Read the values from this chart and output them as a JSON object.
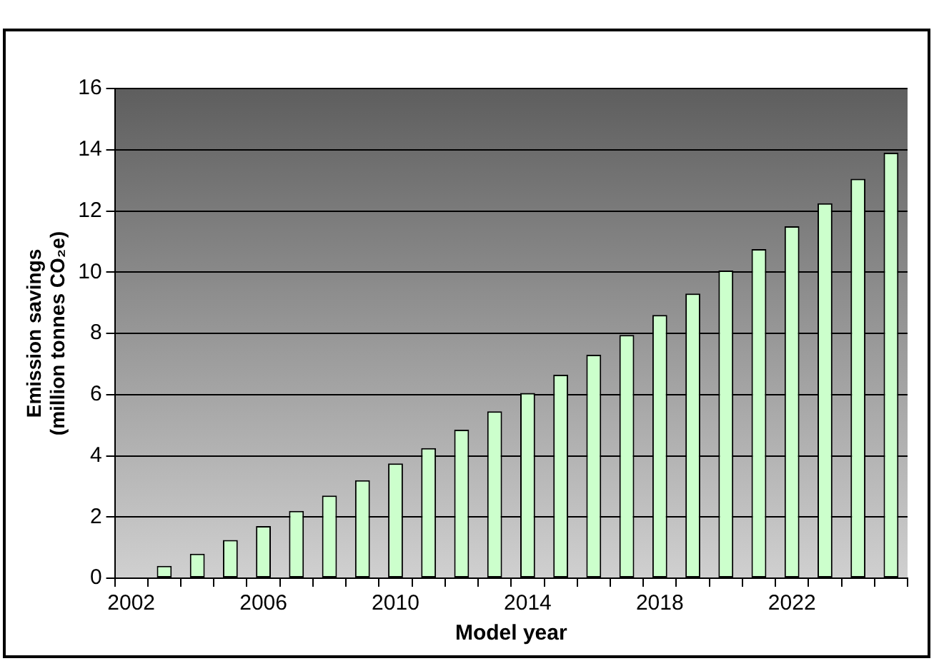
{
  "chart_data": {
    "type": "bar",
    "xlabel": "Model year",
    "ylabel": "Emission savings\n(million tonnes CO₂e)",
    "categories": [
      "2002",
      null,
      null,
      null,
      "2006",
      null,
      null,
      null,
      "2010",
      null,
      null,
      null,
      "2014",
      null,
      null,
      null,
      "2018",
      null,
      null,
      null,
      "2022",
      null,
      null,
      null
    ],
    "values": [
      null,
      0.4,
      0.8,
      1.25,
      1.7,
      2.2,
      2.7,
      3.2,
      3.75,
      4.25,
      4.85,
      5.45,
      6.05,
      6.65,
      7.3,
      7.95,
      8.6,
      9.3,
      10.05,
      10.75,
      11.5,
      12.25,
      13.05,
      13.9
    ],
    "color": "#ccffcc",
    "ylim": [
      0,
      16
    ],
    "yticks": [
      0,
      2,
      4,
      6,
      8,
      10,
      12,
      14,
      16
    ],
    "grid": "y",
    "legend": false
  }
}
